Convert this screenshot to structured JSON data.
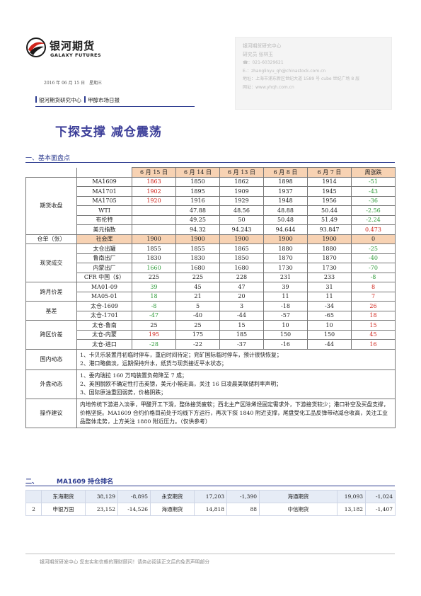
{
  "brand": {
    "name_cn": "银河期货",
    "name_en": "GALAXY FUTURES"
  },
  "date": {
    "text": "2016 年 06 月 15 日",
    "weekday": "星期三"
  },
  "breadcrumb": {
    "org": "银河期货研究中心",
    "report": "甲醇市场日报"
  },
  "contact": {
    "org": "银河期货研究中心",
    "person": "研究员  张林玉",
    "phone": "☎：021-60329621",
    "email": "E-：zhanglinyu_qh@chinastock.com.cn",
    "address": "地址：上海市浦东新区世纪大道 1589 号 cube 世纪广场 8 层",
    "website": "网址：www.yhqh.com.cn"
  },
  "headline": "下探支撑  减仓震荡",
  "section1": {
    "title": "一、基本面盘点"
  },
  "table": {
    "headers": [
      "6 月 15 日",
      "6 月 14 日",
      "6 月 13 日",
      "6 月 8 日",
      "6 月 7 日",
      "周涨跌"
    ],
    "groups": {
      "futures": "期货收盘",
      "warehouse": "仓单（张）",
      "spot": "现货成交",
      "month_spread": "跨月价差",
      "basis": "基差",
      "region_spread": "跨区价差"
    },
    "futures": [
      {
        "label": "MA1609",
        "v": [
          "1863",
          "1850",
          "1862",
          "1898",
          "1914"
        ],
        "chg": "-51"
      },
      {
        "label": "MA1701",
        "v": [
          "1902",
          "1895",
          "1909",
          "1937",
          "1945"
        ],
        "chg": "-43"
      },
      {
        "label": "MA1705",
        "v": [
          "1920",
          "1916",
          "1929",
          "1948",
          "1956"
        ],
        "chg": "-36"
      },
      {
        "label": "WTI",
        "v": [
          "",
          "47.88",
          "48.56",
          "48.88",
          "50.44"
        ],
        "chg": "-2.56"
      },
      {
        "label": "布伦特",
        "v": [
          "",
          "49.25",
          "50",
          "50.48",
          "51.49"
        ],
        "chg": "-2.24"
      },
      {
        "label": "美元指数",
        "v": [
          "",
          "94.32",
          "94.243",
          "94.644",
          "93.847"
        ],
        "chg": "0.473"
      }
    ],
    "warehouse": {
      "label": "社会库",
      "v": [
        "1900",
        "1900",
        "1900",
        "1900",
        "1900"
      ],
      "chg": "0"
    },
    "spot": [
      {
        "label": "太仓出罐",
        "v": [
          "1855",
          "1855",
          "1865",
          "1880",
          "1880"
        ],
        "chg": "-25"
      },
      {
        "label": "鲁南出厂",
        "v": [
          "1830",
          "1830",
          "1850",
          "1870",
          "1870"
        ],
        "chg": "-40"
      },
      {
        "label": "内蒙出厂",
        "v": [
          "1660",
          "1680",
          "1680",
          "1730",
          "1730"
        ],
        "chg": "-70"
      },
      {
        "label": "CFR 中国（$）",
        "v": [
          "225",
          "225",
          "228",
          "231",
          "233"
        ],
        "chg": "-8"
      }
    ],
    "month_spread": [
      {
        "label": "MA01-09",
        "v": [
          "39",
          "45",
          "47",
          "39",
          "31"
        ],
        "chg": "8"
      },
      {
        "label": "MA05-01",
        "v": [
          "18",
          "21",
          "20",
          "11",
          "11"
        ],
        "chg": "7"
      }
    ],
    "basis": [
      {
        "label": "太仓-1609",
        "v": [
          "-8",
          "5",
          "3",
          "-18",
          "-34"
        ],
        "chg": "26"
      },
      {
        "label": "太仓-1701",
        "v": [
          "-47",
          "-40",
          "-44",
          "-57",
          "-65"
        ],
        "chg": "18"
      }
    ],
    "region_spread": [
      {
        "label": "太仓-鲁南",
        "v": [
          "25",
          "25",
          "15",
          "10",
          "10"
        ],
        "chg": "15"
      },
      {
        "label": "太仓-内蒙",
        "v": [
          "195",
          "175",
          "185",
          "150",
          "150"
        ],
        "chg": "45"
      },
      {
        "label": "太仓-进口",
        "v": [
          "-28",
          "-22",
          "-37",
          "-16",
          "-44"
        ],
        "chg": "16"
      }
    ],
    "domestic": {
      "label": "国内动态",
      "lines": [
        "1、卡贝乐装置月初临时停车，重启时间待定；兖矿国际临时停车，预计很快恢复；",
        "2、港口略偏淡，远期保持升水，纸货与现货接近平水状态；"
      ]
    },
    "overseas": {
      "label": "外盘动态",
      "lines": [
        "1、委内瑞拉 160 万吨装置负荷降至 7 成；",
        "2、英国脱欧不确定性打击英镑，美元小幅走高，关注 16 日凌晨美联储利率声明；",
        "3、国际原油重回弱势，价格阴跌；"
      ]
    },
    "advice": {
      "label": "操作建议",
      "text": "内地传统下游进入淡季，甲醛开工下滑，整体接货疲软；西北主产区除烯烃固定需求外，下游接货较少；港口补空及买盘支撑，价格坚挺。MA1609 合约价格目前处于均线下方运行，再次下探 1840 附近支撑，尾盘受化工品反弹带动减仓收高，关注工业品整体走势，上方关注 1880 附近压力。（仅供参考）"
    }
  },
  "section2": {
    "num": "二、",
    "title": "MA1609 持仓排名"
  },
  "ranking": [
    {
      "rank": "",
      "a_name": "东海期货",
      "a_val": "38,129",
      "a_chg": "-8,895",
      "b_name": "永安期货",
      "b_val": "17,203",
      "b_chg": "-1,390",
      "c_name": "海通期货",
      "c_val": "19,093",
      "c_chg": "-1,024"
    },
    {
      "rank": "2",
      "a_name": "申银万国",
      "a_val": "23,152",
      "a_chg": "-14,526",
      "b_name": "海通期货",
      "b_val": "14,818",
      "b_chg": "88",
      "c_name": "中信期货",
      "c_val": "13,182",
      "c_chg": "-1,407"
    }
  ],
  "footer": "银河期货研发中心  您忠实和信赖的理财顾问！请务必阅读正文后的免责声明部分",
  "colors": {
    "accent": "#2b3a8f",
    "header_fill": "#f7d2b3",
    "up": "#d0241b",
    "down": "#2f9b3a",
    "headline": "#3d3f99"
  }
}
